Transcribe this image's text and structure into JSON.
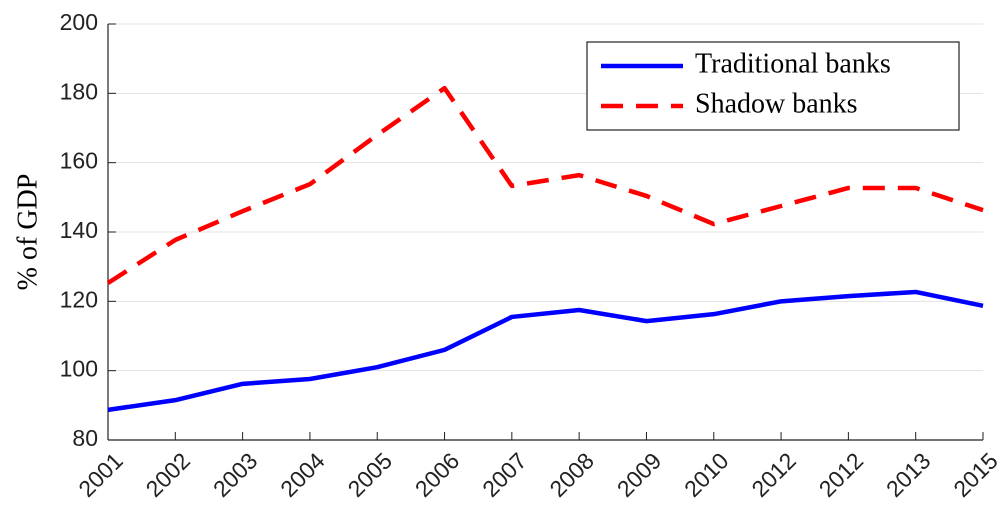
{
  "chart_data": {
    "type": "line",
    "ylabel": "% of GDP",
    "categories": [
      "2001",
      "2002",
      "2003",
      "2004",
      "2005",
      "2006",
      "2007",
      "2008",
      "2009",
      "2010",
      "2012",
      "2012",
      "2013",
      "2015"
    ],
    "series": [
      {
        "name": "Traditional banks",
        "color": "#0000ff",
        "linestyle": "solid",
        "values": [
          88.7,
          91.5,
          96.2,
          97.6,
          101,
          106,
          115.5,
          117.5,
          114.3,
          116.3,
          120,
          121.5,
          122.7,
          118.7
        ]
      },
      {
        "name": "Shadow banks",
        "color": "#ff0000",
        "linestyle": "dashed",
        "values": [
          125.3,
          137.7,
          146,
          153.8,
          168,
          181.5,
          153.3,
          156.4,
          150.4,
          142.3,
          147.5,
          152.7,
          152.7,
          146.3
        ]
      }
    ],
    "ylim": [
      80,
      200
    ],
    "yticks": [
      80,
      100,
      120,
      140,
      160,
      180,
      200
    ],
    "grid": true,
    "legend": "upper right"
  }
}
